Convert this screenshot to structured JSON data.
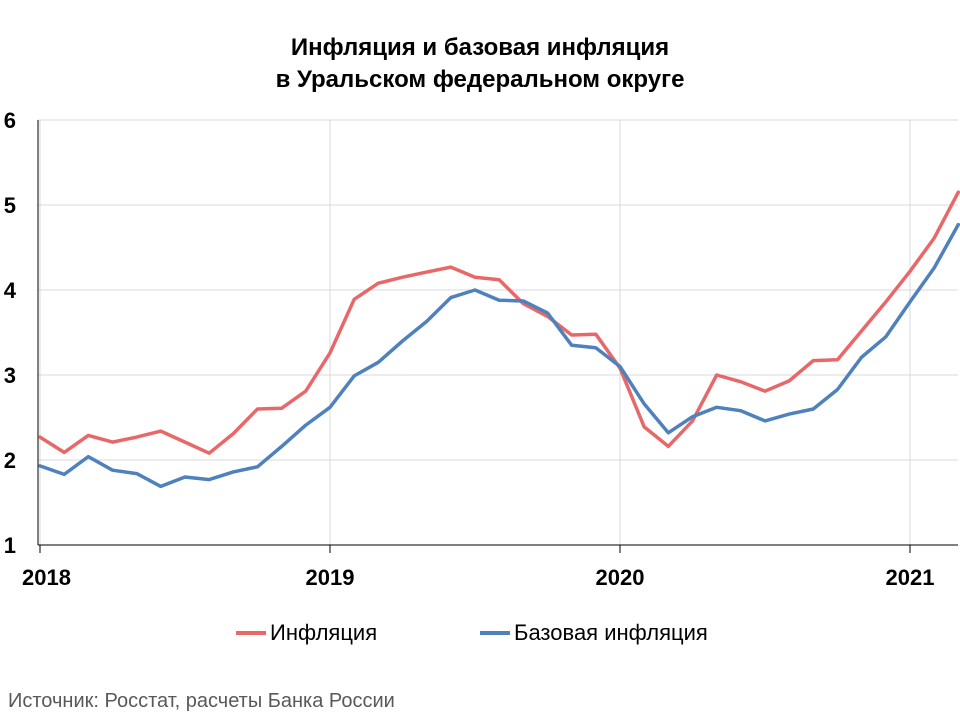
{
  "chart_data": {
    "type": "line",
    "title": [
      "Инфляция и базовая инфляция",
      "в  Уральском федеральном округе"
    ],
    "x_tick_labels": [
      "2018",
      "2019",
      "2020",
      "2021"
    ],
    "y_tick_labels": [
      "1",
      "2",
      "3",
      "4",
      "5",
      "6"
    ],
    "ylim": [
      1,
      6
    ],
    "grid": "vertical and horizontal",
    "legend_position": "bottom",
    "x_months": [
      "2018-01",
      "2018-02",
      "2018-03",
      "2018-04",
      "2018-05",
      "2018-06",
      "2018-07",
      "2018-08",
      "2018-09",
      "2018-10",
      "2018-11",
      "2018-12",
      "2019-01",
      "2019-02",
      "2019-03",
      "2019-04",
      "2019-05",
      "2019-06",
      "2019-07",
      "2019-08",
      "2019-09",
      "2019-10",
      "2019-11",
      "2019-12",
      "2020-01",
      "2020-02",
      "2020-03",
      "2020-04",
      "2020-05",
      "2020-06",
      "2020-07",
      "2020-08",
      "2020-09",
      "2020-10",
      "2020-11",
      "2020-12",
      "2021-01",
      "2021-02",
      "2021-03"
    ],
    "series": [
      {
        "name": "Инфляция",
        "color": "#E8686A",
        "values": [
          2.27,
          2.09,
          2.29,
          2.21,
          2.27,
          2.34,
          2.21,
          2.08,
          2.31,
          2.6,
          2.61,
          2.81,
          3.26,
          3.89,
          4.08,
          4.15,
          4.21,
          4.27,
          4.15,
          4.12,
          3.84,
          3.69,
          3.47,
          3.48,
          3.08,
          2.39,
          2.16,
          2.46,
          3.0,
          2.92,
          2.81,
          2.93,
          3.17,
          3.18,
          3.52,
          3.86,
          4.22,
          4.61,
          5.15
        ]
      },
      {
        "name": "Базовая инфляция",
        "color": "#4F81BD",
        "values": [
          1.93,
          1.83,
          2.04,
          1.88,
          1.84,
          1.69,
          1.8,
          1.77,
          1.86,
          1.92,
          2.16,
          2.41,
          2.62,
          2.99,
          3.15,
          3.4,
          3.63,
          3.91,
          4.0,
          3.88,
          3.87,
          3.73,
          3.35,
          3.32,
          3.1,
          2.66,
          2.32,
          2.51,
          2.62,
          2.58,
          2.46,
          2.54,
          2.6,
          2.83,
          3.21,
          3.45,
          3.86,
          4.26,
          4.77
        ]
      }
    ]
  },
  "source": "Источник: Росстат, расчеты Банка России"
}
